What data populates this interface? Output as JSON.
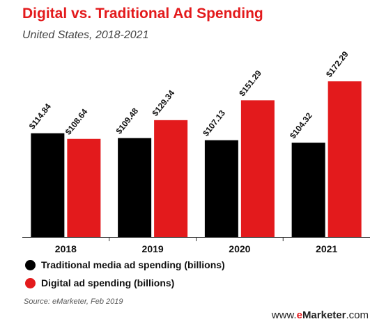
{
  "title": "Digital vs. Traditional Ad Spending",
  "subtitle": "United States, 2018-2021",
  "source": "Source: eMarketer, Feb 2019",
  "watermark": {
    "prefix": "www.",
    "e": "e",
    "brand": "Marketer",
    "suffix": ".com"
  },
  "colors": {
    "traditional": "#000000",
    "digital": "#e31a1c",
    "title": "#e31a1c"
  },
  "chart_data": {
    "type": "bar",
    "title": "Digital vs. Traditional Ad Spending",
    "subtitle": "United States, 2018-2021",
    "categories": [
      "2018",
      "2019",
      "2020",
      "2021"
    ],
    "series": [
      {
        "name": "Traditional media ad spending (billions)",
        "color": "#000000",
        "values": [
          114.84,
          109.48,
          107.13,
          104.32
        ],
        "labels": [
          "$114.84",
          "$109.48",
          "$107.13",
          "$104.32"
        ]
      },
      {
        "name": "Digital ad spending (billions)",
        "color": "#e31a1c",
        "values": [
          108.64,
          129.34,
          151.29,
          172.29
        ],
        "labels": [
          "$108.64",
          "$129.34",
          "$151.29",
          "$172.29"
        ]
      }
    ],
    "xlabel": "",
    "ylabel": "",
    "ylim": [
      0,
      180
    ],
    "grid": false,
    "legend": "bottom-left"
  }
}
